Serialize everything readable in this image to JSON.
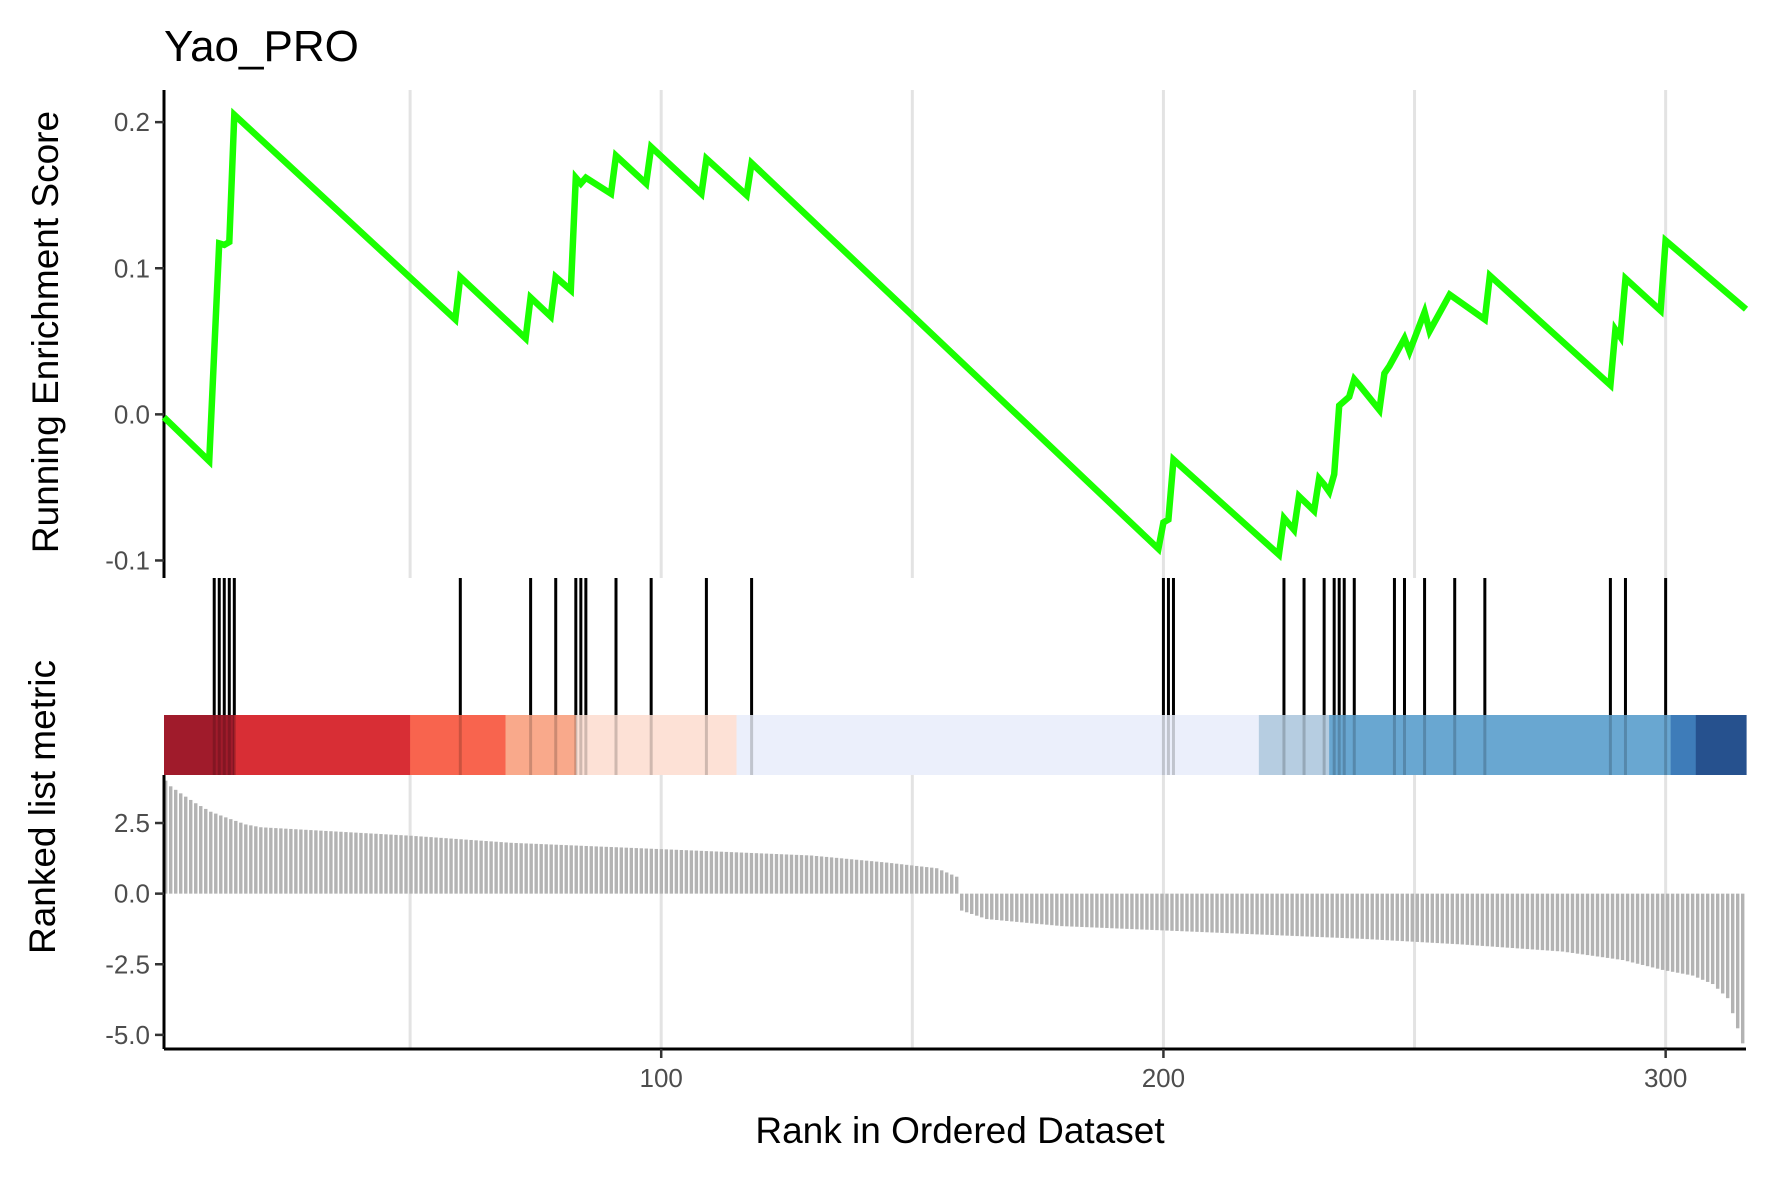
{
  "chart_data": {
    "type": "line",
    "title": "Yao_PRO",
    "xlabel": "Rank in Ordered Dataset",
    "xlim": [
      1,
      316
    ],
    "x_ticks": [
      100,
      200,
      300
    ],
    "x_tick_labels": [
      "100",
      "200",
      "300"
    ],
    "x_minor_grid": [
      50,
      150,
      250
    ],
    "grid": true,
    "panels": {
      "running_score": {
        "ylabel": "Running Enrichment Score",
        "ylim": [
          -0.112,
          0.222
        ],
        "y_ticks": [
          -0.1,
          0.0,
          0.1,
          0.2
        ],
        "y_tick_labels": [
          "-0.1",
          "0.0",
          "0.1",
          "0.2"
        ],
        "line_color": "#1aff00",
        "series": [
          {
            "x": [
              1,
              10,
              12,
              13,
              14,
              15,
              59,
              60,
              73,
              74,
              78,
              79,
              82,
              83,
              84,
              85,
              90,
              91,
              97,
              98,
              108,
              109,
              117,
              118,
              199,
              200,
              201,
              202,
              223,
              224,
              226,
              227,
              230,
              231,
              232,
              233,
              234,
              235,
              237,
              238,
              239,
              243,
              244,
              245,
              248,
              249,
              252,
              253,
              257,
              264,
              265,
              289,
              290,
              291,
              292,
              299,
              300,
              316
            ],
            "y": [
              -0.002,
              -0.032,
              0.117,
              0.116,
              0.118,
              0.205,
              0.065,
              0.094,
              0.052,
              0.08,
              0.067,
              0.094,
              0.085,
              0.162,
              0.158,
              0.162,
              0.151,
              0.177,
              0.158,
              0.183,
              0.151,
              0.175,
              0.15,
              0.172,
              -0.092,
              -0.074,
              -0.072,
              -0.031,
              -0.096,
              -0.071,
              -0.079,
              -0.056,
              -0.066,
              -0.044,
              -0.048,
              -0.053,
              -0.041,
              0.006,
              0.012,
              0.024,
              0.02,
              0.003,
              0.028,
              0.033,
              0.052,
              0.043,
              0.07,
              0.057,
              0.082,
              0.065,
              0.095,
              0.02,
              0.058,
              0.053,
              0.093,
              0.071,
              0.119,
              0.072
            ]
          }
        ]
      },
      "hits": {
        "ranks": [
          11,
          12,
          13,
          14,
          15,
          60,
          74,
          79,
          83,
          84,
          85,
          91,
          98,
          109,
          118,
          200,
          201,
          202,
          224,
          228,
          232,
          234,
          235,
          236,
          238,
          246,
          248,
          252,
          258,
          264,
          289,
          292,
          300
        ]
      },
      "color_bar": {
        "segments": [
          {
            "from": 1,
            "to": 15,
            "color": "#a01b2b"
          },
          {
            "from": 15,
            "to": 50,
            "color": "#d82e35"
          },
          {
            "from": 50,
            "to": 69,
            "color": "#f8644e"
          },
          {
            "from": 69,
            "to": 83,
            "color": "#f9a98b"
          },
          {
            "from": 83,
            "to": 115,
            "color": "#fde1d6"
          },
          {
            "from": 115,
            "to": 219,
            "color": "#ebeffb"
          },
          {
            "from": 219,
            "to": 233,
            "color": "#b6cde1"
          },
          {
            "from": 233,
            "to": 301,
            "color": "#69a7d1"
          },
          {
            "from": 301,
            "to": 306,
            "color": "#3e7cb9"
          },
          {
            "from": 306,
            "to": 316,
            "color": "#26518e"
          }
        ]
      },
      "ranked_metric": {
        "ylabel": "Ranked list metric",
        "ylim": [
          -5.5,
          4.2
        ],
        "y_ticks": [
          -5.0,
          -2.5,
          0.0,
          2.5
        ],
        "y_tick_labels": [
          "-5.0",
          "-2.5",
          "0.0",
          "2.5"
        ],
        "bar_color": "#b3b3b3",
        "curve_points": [
          [
            1,
            4.0
          ],
          [
            2,
            3.8
          ],
          [
            4,
            3.55
          ],
          [
            7,
            3.2
          ],
          [
            10,
            2.9
          ],
          [
            13,
            2.7
          ],
          [
            17,
            2.45
          ],
          [
            20,
            2.35
          ],
          [
            30,
            2.25
          ],
          [
            50,
            2.05
          ],
          [
            70,
            1.8
          ],
          [
            90,
            1.65
          ],
          [
            110,
            1.5
          ],
          [
            130,
            1.35
          ],
          [
            145,
            1.1
          ],
          [
            155,
            0.9
          ],
          [
            159,
            0.6
          ],
          [
            160,
            -0.6
          ],
          [
            165,
            -0.9
          ],
          [
            180,
            -1.15
          ],
          [
            200,
            -1.3
          ],
          [
            220,
            -1.45
          ],
          [
            240,
            -1.6
          ],
          [
            260,
            -1.8
          ],
          [
            280,
            -2.05
          ],
          [
            292,
            -2.35
          ],
          [
            300,
            -2.7
          ],
          [
            306,
            -2.9
          ],
          [
            310,
            -3.2
          ],
          [
            313,
            -3.7
          ],
          [
            316,
            -5.3
          ]
        ]
      }
    }
  }
}
